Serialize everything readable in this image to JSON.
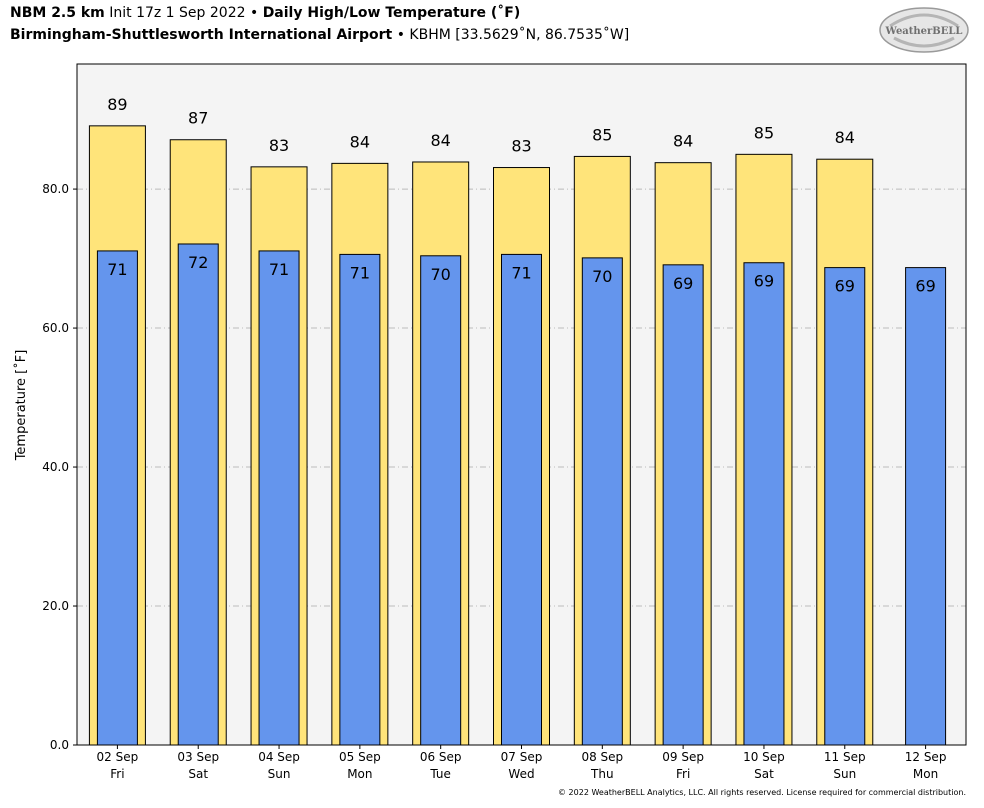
{
  "header": {
    "model": "NBM 2.5 km",
    "init": "Init 17z 1 Sep 2022",
    "product": "Daily High/Low Temperature (˚F)",
    "station_name": "Birmingham-Shuttlesworth International Airport",
    "station_info": "KBHM [33.5629˚N, 86.7535˚W]",
    "bullet": "•"
  },
  "logo": {
    "text": "WeatherBELL"
  },
  "footer": {
    "copyright": "© 2022 WeatherBELL Analytics, LLC. All rights reserved. License required for commercial distribution."
  },
  "colors": {
    "high": "#FFE47A",
    "low": "#6495ED",
    "plot_bg": "#F4F4F4",
    "grid": "#BBBBBB"
  },
  "chart_data": {
    "type": "bar",
    "ylabel": "Temperature [˚F]",
    "ylim": [
      0,
      98
    ],
    "yticks": [
      0,
      20,
      40,
      60,
      80
    ],
    "ytick_labels": [
      "0.0",
      "20.0",
      "40.0",
      "60.0",
      "80.0"
    ],
    "grid": true,
    "categories": [
      "02 Sep",
      "03 Sep",
      "04 Sep",
      "05 Sep",
      "06 Sep",
      "07 Sep",
      "08 Sep",
      "09 Sep",
      "10 Sep",
      "11 Sep",
      "12 Sep"
    ],
    "weekdays": [
      "Fri",
      "Sat",
      "Sun",
      "Mon",
      "Tue",
      "Wed",
      "Thu",
      "Fri",
      "Sat",
      "Sun",
      "Mon"
    ],
    "series": [
      {
        "values": [
          89.1,
          87.1,
          83.2,
          83.7,
          83.9,
          83.1,
          84.7,
          83.8,
          85.0,
          84.3,
          null
        ],
        "labels": [
          "89",
          "87",
          "83",
          "84",
          "84",
          "83",
          "85",
          "84",
          "85",
          "84",
          ""
        ]
      },
      {
        "values": [
          71.1,
          72.1,
          71.1,
          70.6,
          70.4,
          70.6,
          70.1,
          69.1,
          69.4,
          68.7,
          68.7
        ],
        "labels": [
          "71",
          "72",
          "71",
          "71",
          "70",
          "71",
          "70",
          "69",
          "69",
          "69",
          "69"
        ]
      }
    ]
  }
}
